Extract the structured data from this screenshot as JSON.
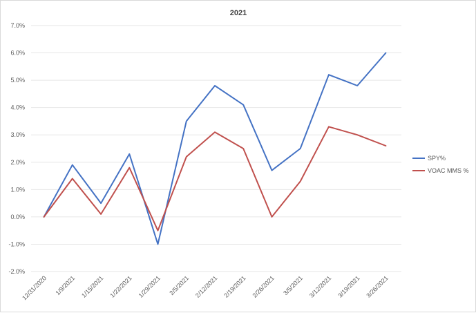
{
  "chart_data": {
    "type": "line",
    "title": "2021",
    "xlabel": "",
    "ylabel": "",
    "ylim": [
      -0.02,
      0.07
    ],
    "y_ticks": [
      -0.02,
      -0.01,
      0.0,
      0.01,
      0.02,
      0.03,
      0.04,
      0.05,
      0.06,
      0.07
    ],
    "y_tick_labels": [
      "-2.0%",
      "-1.0%",
      "0.0%",
      "1.0%",
      "2.0%",
      "3.0%",
      "4.0%",
      "5.0%",
      "6.0%",
      "7.0%"
    ],
    "categories": [
      "12/31/2020",
      "1/9/2021",
      "1/15/2021",
      "1/22/2021",
      "1/29/2021",
      "2/5/2021",
      "2/12/2021",
      "2/19/2021",
      "2/26/2021",
      "3/5/2021",
      "3/12/2021",
      "3/19/2021",
      "3/26/2021"
    ],
    "grid": true,
    "legend": "right",
    "series": [
      {
        "name": "SPY%",
        "color": "#4472c4",
        "values": [
          0.0,
          0.019,
          0.005,
          0.023,
          -0.01,
          0.035,
          0.048,
          0.041,
          0.017,
          0.025,
          0.052,
          0.048,
          0.06
        ]
      },
      {
        "name": "VOAC MMS %",
        "color": "#c0504d",
        "values": [
          0.0,
          0.014,
          0.001,
          0.018,
          -0.005,
          0.022,
          0.031,
          0.025,
          0.0,
          0.013,
          0.033,
          0.03,
          0.026
        ]
      }
    ]
  }
}
